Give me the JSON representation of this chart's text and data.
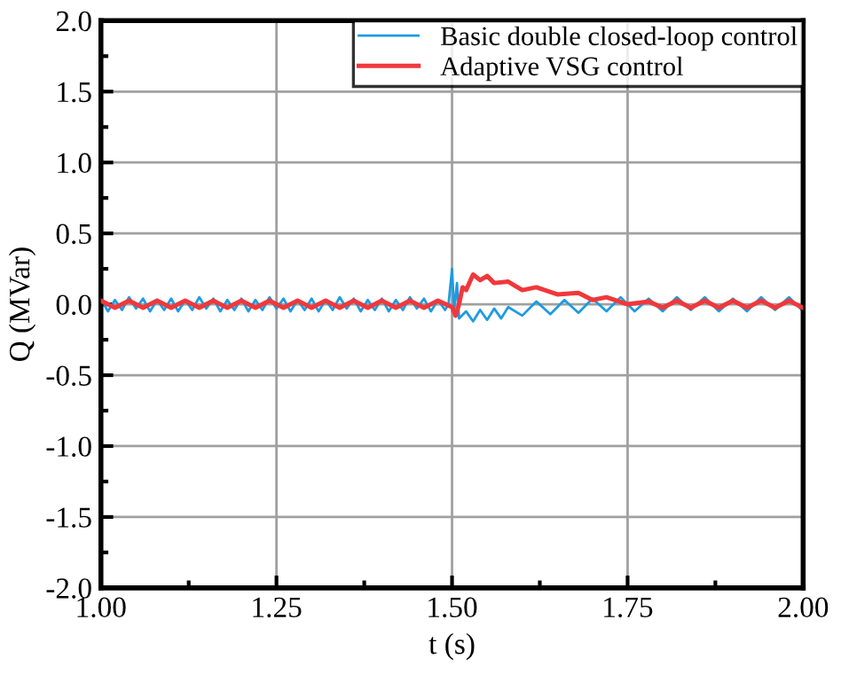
{
  "chart_data": {
    "type": "line",
    "xlabel": "t (s)",
    "ylabel": "Q (MVar)",
    "xlim": [
      1.0,
      2.0
    ],
    "xticks": [
      {
        "value": 1.0,
        "label": "1.00"
      },
      {
        "value": 1.25,
        "label": "1.25"
      },
      {
        "value": 1.5,
        "label": "1.50"
      },
      {
        "value": 1.75,
        "label": "1.75"
      },
      {
        "value": 2.0,
        "label": "2.00"
      }
    ],
    "ylim": [
      -2.0,
      2.0
    ],
    "yticks": [
      {
        "value": -2.0,
        "label": "-2.0"
      },
      {
        "value": -1.5,
        "label": "-1.5"
      },
      {
        "value": -1.0,
        "label": "-1.0"
      },
      {
        "value": -0.5,
        "label": "-0.5"
      },
      {
        "value": 0.0,
        "label": "0.0"
      },
      {
        "value": 0.5,
        "label": "0.5"
      },
      {
        "value": 1.0,
        "label": "1.0"
      },
      {
        "value": 1.5,
        "label": "1.5"
      },
      {
        "value": 2.0,
        "label": "2.0"
      }
    ],
    "grid": true,
    "legend": "top right",
    "marker": "none",
    "line_style": "solid",
    "series": [
      {
        "name": "Basic double closed-loop control",
        "color": "#1e9be0",
        "x": [
          1.0,
          1.01,
          1.02,
          1.03,
          1.04,
          1.05,
          1.06,
          1.07,
          1.08,
          1.09,
          1.1,
          1.11,
          1.12,
          1.13,
          1.14,
          1.15,
          1.16,
          1.17,
          1.18,
          1.19,
          1.2,
          1.21,
          1.22,
          1.23,
          1.24,
          1.25,
          1.26,
          1.27,
          1.28,
          1.29,
          1.3,
          1.31,
          1.32,
          1.33,
          1.34,
          1.35,
          1.36,
          1.37,
          1.38,
          1.39,
          1.4,
          1.41,
          1.42,
          1.43,
          1.44,
          1.45,
          1.46,
          1.47,
          1.48,
          1.49,
          1.495,
          1.5,
          1.503,
          1.507,
          1.51,
          1.52,
          1.53,
          1.54,
          1.55,
          1.56,
          1.57,
          1.58,
          1.6,
          1.62,
          1.64,
          1.66,
          1.68,
          1.7,
          1.72,
          1.74,
          1.76,
          1.78,
          1.8,
          1.82,
          1.84,
          1.86,
          1.88,
          1.9,
          1.92,
          1.94,
          1.96,
          1.98,
          2.0
        ],
        "values": [
          0.04,
          -0.05,
          0.03,
          -0.04,
          0.05,
          -0.03,
          0.04,
          -0.05,
          0.03,
          -0.04,
          0.04,
          -0.05,
          0.03,
          -0.04,
          0.05,
          -0.03,
          0.04,
          -0.05,
          0.03,
          -0.04,
          0.04,
          -0.05,
          0.03,
          -0.04,
          0.05,
          -0.03,
          0.04,
          -0.05,
          0.03,
          -0.04,
          0.04,
          -0.05,
          0.03,
          -0.04,
          0.05,
          -0.03,
          0.04,
          -0.05,
          0.03,
          -0.04,
          0.04,
          -0.05,
          0.03,
          -0.04,
          0.05,
          -0.03,
          0.04,
          -0.05,
          0.03,
          -0.04,
          0.0,
          0.25,
          -0.05,
          0.15,
          -0.1,
          -0.05,
          -0.12,
          -0.04,
          -0.11,
          -0.03,
          -0.1,
          -0.02,
          -0.08,
          0.02,
          -0.07,
          0.03,
          -0.06,
          0.04,
          -0.05,
          0.05,
          -0.05,
          0.04,
          -0.05,
          0.05,
          -0.04,
          0.05,
          -0.05,
          0.04,
          -0.05,
          0.05,
          -0.04,
          0.05,
          -0.05
        ]
      },
      {
        "name": "Adaptive VSG control",
        "color": "#f0383c",
        "x": [
          1.0,
          1.02,
          1.04,
          1.06,
          1.08,
          1.1,
          1.12,
          1.14,
          1.16,
          1.18,
          1.2,
          1.22,
          1.24,
          1.26,
          1.28,
          1.3,
          1.32,
          1.34,
          1.36,
          1.38,
          1.4,
          1.42,
          1.44,
          1.46,
          1.48,
          1.5,
          1.505,
          1.51,
          1.515,
          1.52,
          1.53,
          1.54,
          1.55,
          1.56,
          1.58,
          1.6,
          1.62,
          1.65,
          1.68,
          1.7,
          1.72,
          1.75,
          1.78,
          1.8,
          1.82,
          1.84,
          1.86,
          1.88,
          1.9,
          1.92,
          1.94,
          1.96,
          1.98,
          2.0
        ],
        "values": [
          0.025,
          -0.025,
          0.025,
          -0.025,
          0.025,
          -0.025,
          0.025,
          -0.025,
          0.025,
          -0.025,
          0.025,
          -0.025,
          0.025,
          -0.025,
          0.025,
          -0.025,
          0.025,
          -0.025,
          0.025,
          -0.025,
          0.025,
          -0.025,
          0.025,
          -0.025,
          0.025,
          -0.02,
          -0.08,
          0.0,
          0.12,
          0.1,
          0.21,
          0.17,
          0.2,
          0.15,
          0.16,
          0.1,
          0.12,
          0.07,
          0.08,
          0.03,
          0.05,
          0.0,
          0.02,
          -0.025,
          0.025,
          -0.025,
          0.025,
          -0.025,
          0.025,
          -0.025,
          0.025,
          -0.025,
          0.025,
          -0.025
        ]
      }
    ]
  }
}
